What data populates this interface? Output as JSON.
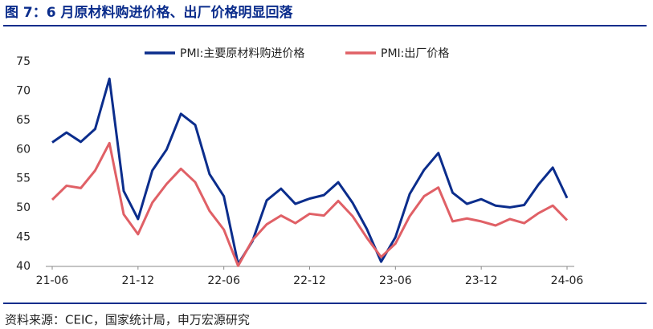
{
  "title": "图 7：6 月原材料购进价格、出厂价格明显回落",
  "source": "资料来源：CEIC，国家统计局，申万宏源研究",
  "chart_data": {
    "type": "line",
    "categories": [
      "21-06",
      null,
      null,
      null,
      null,
      null,
      "21-12",
      null,
      null,
      null,
      null,
      null,
      "22-06",
      null,
      null,
      null,
      null,
      null,
      "22-12",
      null,
      null,
      null,
      null,
      null,
      "23-06",
      null,
      null,
      null,
      null,
      null,
      "23-12",
      null,
      null,
      null,
      null,
      null,
      "24-06"
    ],
    "series": [
      {
        "name": "PMI:主要原材料购进价格",
        "color": "#0b2d8c",
        "values": [
          61.2,
          62.9,
          61.3,
          63.5,
          72.1,
          52.9,
          48.1,
          56.4,
          60.0,
          66.1,
          64.2,
          55.8,
          52.0,
          40.4,
          44.3,
          51.3,
          53.3,
          50.7,
          51.6,
          52.2,
          54.4,
          50.9,
          46.4,
          40.8,
          45.0,
          52.4,
          56.5,
          59.4,
          52.6,
          50.7,
          51.5,
          50.4,
          50.1,
          50.5,
          54.0,
          56.9,
          51.7
        ]
      },
      {
        "name": "PMI:出厂价格",
        "color": "#e06066",
        "values": [
          51.4,
          53.8,
          53.4,
          56.4,
          61.1,
          48.9,
          45.5,
          50.9,
          54.1,
          56.7,
          54.4,
          49.5,
          46.3,
          40.1,
          44.5,
          47.2,
          48.7,
          47.4,
          49.0,
          48.7,
          51.2,
          48.6,
          44.9,
          41.6,
          43.9,
          48.6,
          52.0,
          53.5,
          47.7,
          48.2,
          47.7,
          47.0,
          48.1,
          47.4,
          49.1,
          50.4,
          47.9
        ]
      }
    ],
    "ylim": [
      40,
      75
    ],
    "yticks": [
      40,
      45,
      50,
      55,
      60,
      65,
      70,
      75
    ],
    "legend": "top"
  }
}
